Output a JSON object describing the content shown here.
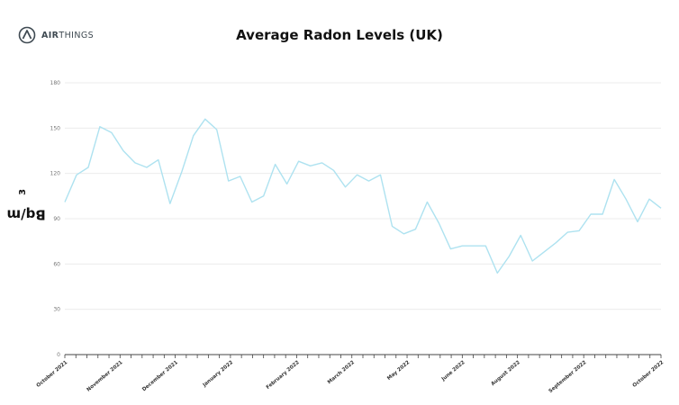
{
  "brand": {
    "logo_bold": "AIR",
    "logo_rest": "THINGS",
    "logo_icon": "airthings-logo-icon"
  },
  "chart_data": {
    "type": "line",
    "title": "Average Radon Levels (UK)",
    "xlabel": "",
    "ylabel": "Bq/m",
    "ylabel_superscript": "3",
    "ylim": [
      0,
      180
    ],
    "yticks": [
      0,
      30,
      60,
      90,
      120,
      150,
      180
    ],
    "grid": true,
    "legend": "none",
    "line_color": "#aee2f0",
    "x_tick_count": 55,
    "month_labels": [
      {
        "label": "October 2021",
        "index": 0
      },
      {
        "label": "November 2021",
        "index": 5
      },
      {
        "label": "December 2021",
        "index": 10
      },
      {
        "label": "January 2022",
        "index": 15
      },
      {
        "label": "February 2022",
        "index": 21
      },
      {
        "label": "March 2022",
        "index": 26
      },
      {
        "label": "May 2022",
        "index": 31
      },
      {
        "label": "June 2022",
        "index": 36
      },
      {
        "label": "August 2022",
        "index": 41
      },
      {
        "label": "September 2022",
        "index": 47
      },
      {
        "label": "October 2022",
        "index": 54
      }
    ],
    "series": [
      {
        "values": [
          101,
          119,
          124,
          151,
          147,
          135,
          127,
          124,
          129,
          100,
          121,
          145,
          156,
          149,
          115,
          118,
          101,
          105,
          126,
          113,
          128,
          125,
          127,
          122,
          111,
          119,
          115,
          119,
          85,
          80,
          83,
          101,
          87,
          70,
          72,
          72,
          72,
          54,
          65,
          79,
          62,
          68,
          74,
          81,
          82,
          93,
          93,
          116,
          103,
          88,
          103,
          97
        ]
      }
    ]
  }
}
